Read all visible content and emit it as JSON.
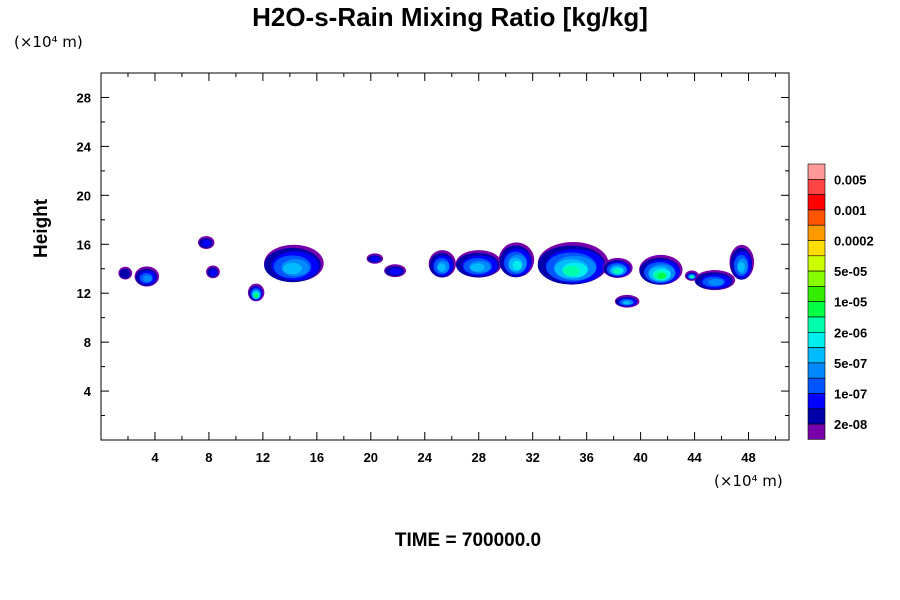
{
  "chart_data": {
    "type": "heatmap",
    "title": "H2O-s-Rain Mixing Ratio [kg/kg]",
    "ylabel": "Height",
    "y_unit": "(×10⁴ m)",
    "x_unit": "(×10⁴ m)",
    "xlim": [
      0,
      51
    ],
    "ylim": [
      0,
      30
    ],
    "x_ticks": [
      4,
      8,
      12,
      16,
      20,
      24,
      28,
      32,
      36,
      40,
      44,
      48
    ],
    "y_ticks": [
      4,
      8,
      12,
      16,
      20,
      24,
      28
    ],
    "colorbar": {
      "labels": [
        "0.005",
        "0.001",
        "0.0002",
        "5e-05",
        "1e-05",
        "2e-06",
        "5e-07",
        "1e-07",
        "2e-08"
      ],
      "colors": [
        "#ff9999",
        "#ff4444",
        "#ff0000",
        "#ff5500",
        "#ff9900",
        "#ffdd00",
        "#ccff00",
        "#88ff00",
        "#33ee00",
        "#00ff44",
        "#00ffaa",
        "#00eeee",
        "#00bbff",
        "#0088ff",
        "#0055ff",
        "#0000ff",
        "#0000aa",
        "#7700aa"
      ]
    },
    "cells": [
      {
        "x": 1.8,
        "y": 13.6,
        "rx": 0.4,
        "ry": 0.4,
        "level": 1
      },
      {
        "x": 3.4,
        "y": 13.3,
        "rx": 0.8,
        "ry": 0.7,
        "level": 4
      },
      {
        "x": 7.8,
        "y": 16.1,
        "rx": 0.5,
        "ry": 0.4,
        "level": 2
      },
      {
        "x": 8.3,
        "y": 13.7,
        "rx": 0.4,
        "ry": 0.4,
        "level": 2
      },
      {
        "x": 11.5,
        "y": 12.0,
        "rx": 0.5,
        "ry": 0.6,
        "level": 8
      },
      {
        "x": 14.3,
        "y": 14.3,
        "rx": 2.1,
        "ry": 1.4,
        "level": 5
      },
      {
        "x": 20.3,
        "y": 14.8,
        "rx": 0.5,
        "ry": 0.3,
        "level": 2
      },
      {
        "x": 21.8,
        "y": 13.8,
        "rx": 0.7,
        "ry": 0.4,
        "level": 2
      },
      {
        "x": 25.3,
        "y": 14.3,
        "rx": 0.9,
        "ry": 1.0,
        "level": 5
      },
      {
        "x": 28.0,
        "y": 14.3,
        "rx": 1.6,
        "ry": 1.0,
        "level": 5
      },
      {
        "x": 30.8,
        "y": 14.6,
        "rx": 1.2,
        "ry": 1.3,
        "level": 6
      },
      {
        "x": 35.0,
        "y": 14.3,
        "rx": 2.5,
        "ry": 1.6,
        "level": 7
      },
      {
        "x": 38.3,
        "y": 14.0,
        "rx": 1.0,
        "ry": 0.7,
        "level": 7
      },
      {
        "x": 39.0,
        "y": 11.3,
        "rx": 0.8,
        "ry": 0.4,
        "level": 5
      },
      {
        "x": 41.5,
        "y": 13.8,
        "rx": 1.5,
        "ry": 1.1,
        "level": 8
      },
      {
        "x": 43.8,
        "y": 13.4,
        "rx": 0.4,
        "ry": 0.3,
        "level": 7
      },
      {
        "x": 45.5,
        "y": 13.0,
        "rx": 1.4,
        "ry": 0.7,
        "level": 4
      },
      {
        "x": 47.5,
        "y": 14.4,
        "rx": 0.8,
        "ry": 1.3,
        "level": 5
      }
    ]
  },
  "time_label": "TIME = 700000.0"
}
